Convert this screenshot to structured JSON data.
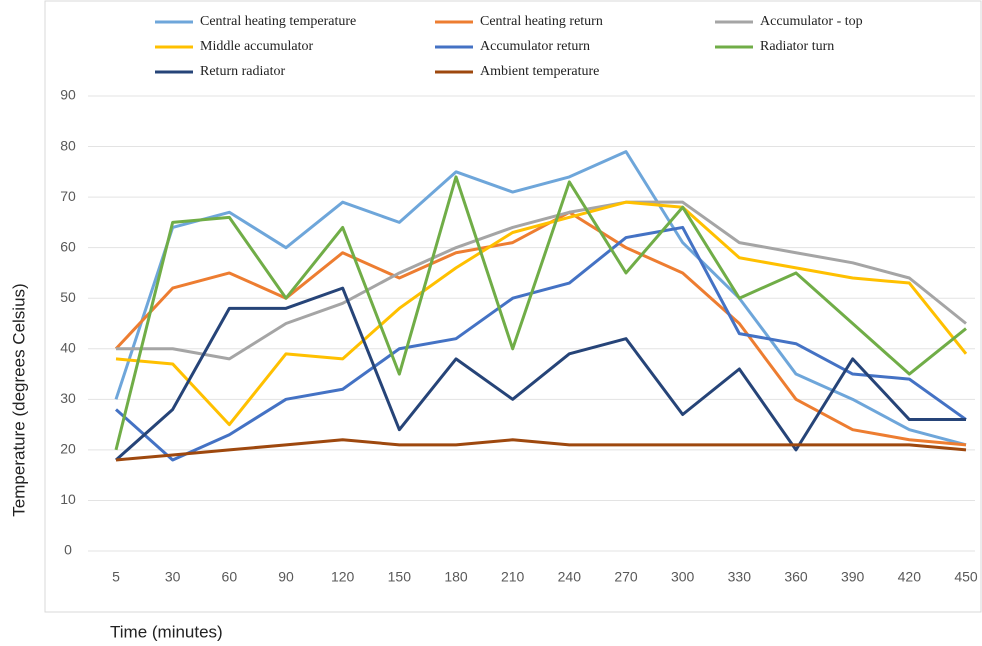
{
  "chart_data": {
    "type": "line",
    "x_label": "Time (minutes)",
    "y_label": "Temperature (degrees Celsius)",
    "categories": [
      5,
      30,
      60,
      90,
      120,
      150,
      180,
      210,
      240,
      270,
      300,
      330,
      360,
      390,
      420,
      450
    ],
    "series": [
      {
        "name": "Central heating temperature",
        "color": "#6ea6da",
        "values": [
          30,
          64,
          67,
          60,
          69,
          65,
          75,
          71,
          74,
          79,
          61,
          50,
          35,
          30,
          24,
          21
        ]
      },
      {
        "name": "Central heating return",
        "color": "#ed7d31",
        "values": [
          40,
          52,
          55,
          50,
          59,
          54,
          59,
          61,
          67,
          60,
          55,
          45,
          30,
          24,
          22,
          21
        ]
      },
      {
        "name": "Accumulator - top",
        "color": "#a5a5a5",
        "values": [
          40,
          40,
          38,
          45,
          49,
          55,
          60,
          64,
          67,
          69,
          69,
          61,
          59,
          57,
          54,
          45
        ]
      },
      {
        "name": "Middle accumulator",
        "color": "#ffc000",
        "values": [
          38,
          37,
          25,
          39,
          38,
          48,
          56,
          63,
          66,
          69,
          68,
          58,
          56,
          54,
          53,
          39
        ]
      },
      {
        "name": "Accumulator return",
        "color": "#4472c4",
        "values": [
          28,
          18,
          23,
          30,
          32,
          40,
          42,
          50,
          53,
          62,
          64,
          43,
          41,
          35,
          34,
          26
        ]
      },
      {
        "name": "Radiator turn",
        "color": "#70ad47",
        "values": [
          20,
          65,
          66,
          50,
          64,
          35,
          74,
          40,
          73,
          55,
          68,
          50,
          55,
          45,
          35,
          44
        ]
      },
      {
        "name": "Return radiator",
        "color": "#264478",
        "values": [
          18,
          28,
          48,
          48,
          52,
          24,
          38,
          30,
          39,
          42,
          27,
          36,
          20,
          38,
          26,
          26
        ]
      },
      {
        "name": "Ambient temperature",
        "color": "#9e480e",
        "values": [
          18,
          19,
          20,
          21,
          22,
          21,
          21,
          22,
          21,
          21,
          21,
          21,
          21,
          21,
          21,
          20
        ]
      }
    ],
    "ylim": [
      0,
      90
    ],
    "yticks": [
      0,
      10,
      20,
      30,
      40,
      50,
      60,
      70,
      80,
      90
    ],
    "grid": true,
    "legend": "top"
  }
}
